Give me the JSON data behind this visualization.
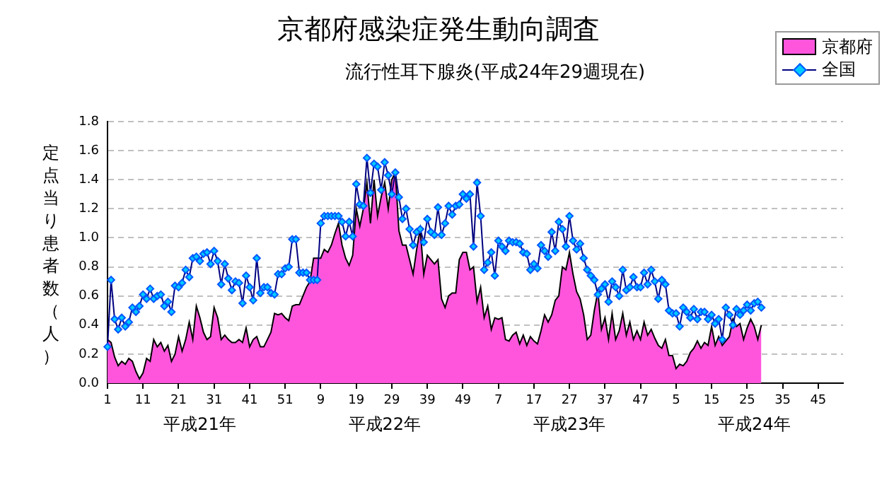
{
  "chart_data": {
    "type": "line",
    "title": "京都府感染症発生動向調査",
    "subtitle": "流行性耳下腺炎(平成24年29週現在)",
    "ylabel": "定点当り患者数（人）",
    "annotations": [
      "平成21年",
      "平成22年",
      "平成23年",
      "平成24年"
    ],
    "categories": [
      "1",
      null,
      null,
      null,
      null,
      null,
      null,
      null,
      null,
      null,
      "11",
      null,
      null,
      null,
      null,
      null,
      null,
      null,
      null,
      null,
      "21",
      null,
      null,
      null,
      null,
      null,
      null,
      null,
      null,
      null,
      "31",
      null,
      null,
      null,
      null,
      null,
      null,
      null,
      null,
      null,
      "41",
      null,
      null,
      null,
      null,
      null,
      null,
      null,
      null,
      null,
      "51",
      null,
      null,
      null,
      null,
      null,
      null,
      null,
      null,
      null,
      "9",
      null,
      null,
      null,
      null,
      null,
      null,
      null,
      null,
      null,
      "19",
      null,
      null,
      null,
      null,
      null,
      null,
      null,
      null,
      null,
      "29",
      null,
      null,
      null,
      null,
      null,
      null,
      null,
      null,
      null,
      "39",
      null,
      null,
      null,
      null,
      null,
      null,
      null,
      null,
      null,
      "49",
      null,
      null,
      null,
      null,
      null,
      null,
      null,
      null,
      null,
      "7",
      null,
      null,
      null,
      null,
      null,
      null,
      null,
      null,
      null,
      "17",
      null,
      null,
      null,
      null,
      null,
      null,
      null,
      null,
      null,
      "27",
      null,
      null,
      null,
      null,
      null,
      null,
      null,
      null,
      null,
      "37",
      null,
      null,
      null,
      null,
      null,
      null,
      null,
      null,
      null,
      "47",
      null,
      null,
      null,
      null,
      null,
      null,
      null,
      null,
      null,
      "5",
      null,
      null,
      null,
      null,
      null,
      null,
      null,
      null,
      null,
      "15",
      null,
      null,
      null,
      null,
      null,
      null,
      null,
      null,
      null,
      "25",
      null,
      null,
      null,
      null,
      null,
      null,
      null,
      null,
      null,
      "35",
      null,
      null,
      null,
      null,
      null,
      null,
      null,
      null,
      null,
      "45",
      null,
      null,
      null,
      null,
      null,
      null,
      null
    ],
    "series": [
      {
        "name": "京都府",
        "type": "area",
        "color": "#ff55dd",
        "values": [
          0.3,
          0.28,
          0.18,
          0.12,
          0.15,
          0.13,
          0.17,
          0.15,
          0.08,
          0.03,
          0.07,
          0.17,
          0.15,
          0.3,
          0.25,
          0.28,
          0.22,
          0.26,
          0.15,
          0.2,
          0.32,
          0.22,
          0.3,
          0.42,
          0.3,
          0.53,
          0.45,
          0.35,
          0.3,
          0.32,
          0.52,
          0.45,
          0.3,
          0.33,
          0.3,
          0.28,
          0.28,
          0.3,
          0.28,
          0.38,
          0.25,
          0.3,
          0.32,
          0.25,
          0.25,
          0.3,
          0.35,
          0.48,
          0.47,
          0.48,
          0.45,
          0.43,
          0.53,
          0.54,
          0.54,
          0.6,
          0.66,
          0.7,
          0.86,
          0.86,
          0.86,
          0.92,
          0.9,
          0.95,
          1.03,
          1.1,
          0.95,
          0.86,
          0.81,
          0.88,
          1.2,
          1.08,
          1.2,
          1.38,
          1.1,
          1.4,
          1.15,
          1.28,
          1.38,
          1.2,
          1.4,
          1.45,
          1.05,
          0.95,
          0.95,
          0.85,
          0.75,
          0.92,
          1.06,
          0.75,
          0.88,
          0.85,
          0.82,
          0.85,
          0.58,
          0.52,
          0.6,
          0.62,
          0.62,
          0.85,
          0.9,
          0.9,
          0.78,
          0.8,
          0.56,
          0.66,
          0.45,
          0.53,
          0.37,
          0.45,
          0.44,
          0.45,
          0.3,
          0.29,
          0.33,
          0.35,
          0.27,
          0.33,
          0.26,
          0.32,
          0.29,
          0.27,
          0.36,
          0.47,
          0.42,
          0.47,
          0.57,
          0.6,
          0.8,
          0.78,
          0.9,
          0.75,
          0.63,
          0.58,
          0.47,
          0.3,
          0.33,
          0.5,
          0.63,
          0.37,
          0.45,
          0.3,
          0.48,
          0.3,
          0.36,
          0.48,
          0.33,
          0.42,
          0.3,
          0.36,
          0.3,
          0.42,
          0.33,
          0.37,
          0.31,
          0.26,
          0.24,
          0.3,
          0.19,
          0.19,
          0.1,
          0.13,
          0.12,
          0.15,
          0.21,
          0.24,
          0.29,
          0.24,
          0.28,
          0.26,
          0.39,
          0.26,
          0.32,
          0.26,
          0.29,
          0.32,
          0.44,
          0.39,
          0.41,
          0.3,
          0.38,
          0.44,
          0.39,
          0.3,
          0.4,
          null,
          null,
          null,
          null,
          null,
          null,
          null,
          null,
          null,
          null,
          null,
          null,
          null,
          null,
          null,
          null,
          null,
          null,
          null,
          null,
          null,
          null,
          null
        ]
      },
      {
        "name": "全国",
        "type": "line",
        "color": "#00ccff",
        "marker": "diamond",
        "values": [
          0.25,
          0.71,
          0.44,
          0.37,
          0.45,
          0.39,
          0.42,
          0.52,
          0.49,
          0.53,
          0.61,
          0.58,
          0.65,
          0.58,
          0.6,
          0.61,
          0.53,
          0.56,
          0.49,
          0.67,
          0.66,
          0.69,
          0.78,
          0.73,
          0.86,
          0.87,
          0.84,
          0.89,
          0.9,
          0.82,
          0.91,
          0.84,
          0.68,
          0.82,
          0.72,
          0.64,
          0.7,
          0.69,
          0.55,
          0.74,
          0.66,
          0.57,
          0.86,
          0.62,
          0.66,
          0.66,
          0.62,
          0.61,
          0.75,
          0.75,
          0.79,
          0.8,
          0.99,
          0.99,
          0.76,
          0.76,
          0.76,
          0.71,
          0.71,
          0.71,
          1.1,
          1.15,
          1.15,
          1.15,
          1.15,
          1.15,
          1.11,
          1.01,
          1.11,
          1.01,
          1.37,
          1.23,
          1.22,
          1.55,
          1.31,
          1.51,
          1.49,
          1.33,
          1.52,
          1.43,
          1.3,
          1.45,
          1.28,
          1.13,
          1.2,
          1.06,
          0.95,
          1.04,
          1.06,
          0.97,
          1.13,
          1.04,
          1.02,
          1.21,
          1.02,
          1.1,
          1.22,
          1.16,
          1.22,
          1.23,
          1.3,
          1.27,
          1.3,
          0.94,
          1.38,
          1.15,
          0.78,
          0.83,
          0.9,
          0.74,
          0.98,
          0.94,
          0.91,
          0.98,
          0.97,
          0.97,
          0.96,
          0.9,
          0.89,
          0.78,
          0.82,
          0.79,
          0.95,
          0.91,
          0.87,
          1.04,
          0.91,
          1.11,
          1.06,
          0.94,
          1.15,
          0.98,
          0.92,
          0.96,
          0.86,
          0.78,
          0.74,
          0.71,
          0.61,
          0.65,
          0.68,
          0.56,
          0.7,
          0.66,
          0.6,
          0.78,
          0.64,
          0.66,
          0.73,
          0.66,
          0.66,
          0.76,
          0.68,
          0.78,
          0.7,
          0.58,
          0.71,
          0.68,
          0.5,
          0.48,
          0.48,
          0.39,
          0.52,
          0.49,
          0.45,
          0.51,
          0.44,
          0.49,
          0.49,
          0.44,
          0.47,
          0.41,
          0.44,
          0.3,
          0.52,
          0.47,
          0.4,
          0.51,
          0.47,
          0.5,
          0.54,
          0.5,
          0.55,
          0.56,
          0.52,
          null,
          null,
          null,
          null,
          null,
          null,
          null,
          null,
          null,
          null,
          null,
          null,
          null,
          null,
          null,
          null,
          null,
          null,
          null,
          null,
          null,
          null,
          null
        ]
      }
    ],
    "ylim": [
      0,
      1.8
    ],
    "yticks": [
      {
        "value": 0,
        "label": "0.0"
      },
      0.2,
      0.4,
      0.6,
      0.8,
      {
        "value": 1,
        "label": "1.0"
      },
      1.2,
      1.4,
      1.6,
      1.8
    ],
    "grid": "y",
    "legend": "top right"
  }
}
